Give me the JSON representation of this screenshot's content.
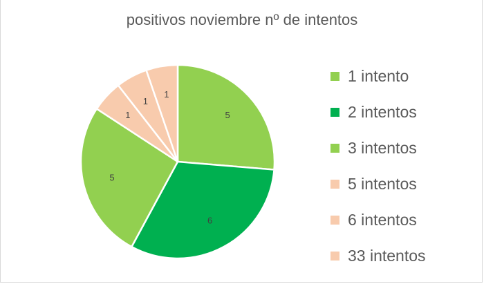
{
  "chart_data": {
    "type": "pie",
    "title": "positivos noviembre nº de intentos",
    "categories": [
      "1 intento",
      "2 intentos",
      "3 intentos",
      "5 intentos",
      "6 intentos",
      "33 intentos"
    ],
    "values": [
      5,
      6,
      5,
      1,
      1,
      1
    ],
    "data_labels": [
      "5",
      "6",
      "5",
      "1",
      "1",
      "1"
    ],
    "colors": [
      "#92d050",
      "#00b050",
      "#92d050",
      "#f8cbad",
      "#f8cbad",
      "#f8cbad"
    ],
    "start_angle": "12 o'clock",
    "direction": "clockwise",
    "legend_position": "right"
  }
}
